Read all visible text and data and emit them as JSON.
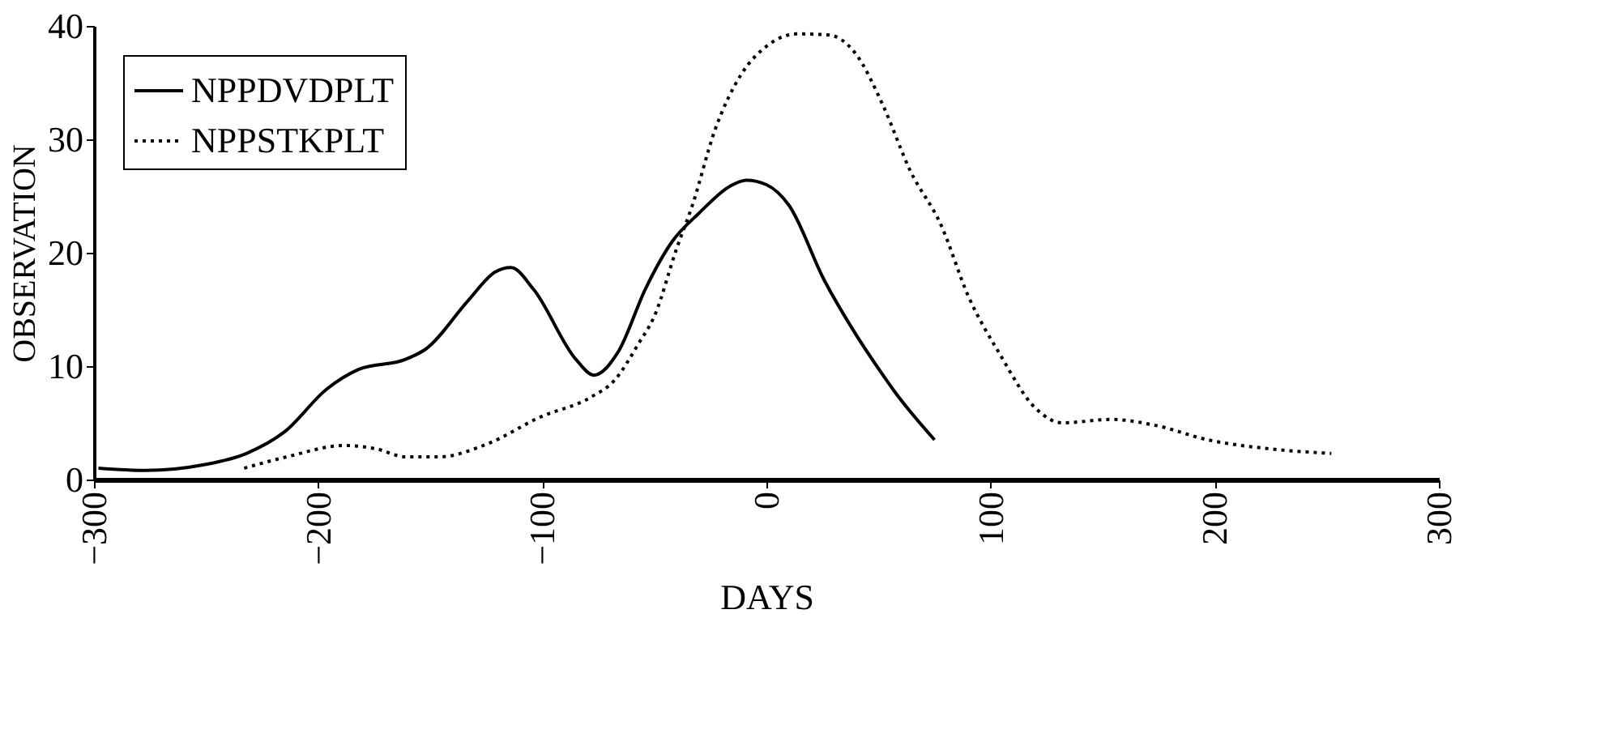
{
  "chart_data": {
    "type": "line",
    "xlabel": "DAYS",
    "ylabel": "OBSERVATION",
    "xlim": [
      -300,
      300
    ],
    "xticks": [
      -300,
      -200,
      -100,
      0,
      100,
      200,
      300
    ],
    "ylim": [
      0,
      40
    ],
    "yticks": [
      0,
      10,
      20,
      30,
      40
    ],
    "legend": "top left",
    "marker": "none",
    "series": [
      {
        "name": "NPPDVDPLT",
        "color": "#000000",
        "line_style": "solid",
        "x": [
          -298,
          -277,
          -251,
          -232,
          -215,
          -196,
          -182,
          -161,
          -152,
          -133,
          -121,
          -114,
          -104,
          -85,
          -77,
          -66,
          -54,
          -42,
          -30,
          -16,
          -9,
          0,
          10,
          26,
          38,
          52,
          57,
          75
        ],
        "values": [
          1.0,
          0.8,
          1.3,
          2.3,
          4.2,
          8.0,
          9.7,
          10.6,
          11.5,
          15.8,
          18.3,
          18.7,
          16.8,
          10.6,
          9.2,
          11.3,
          16.8,
          21.0,
          23.5,
          25.9,
          26.4,
          26.0,
          24.2,
          17.5,
          13.4,
          9.2,
          7.8,
          3.5
        ]
      },
      {
        "name": "NPPSTKPLT",
        "color": "#000000",
        "line_style": "dotted",
        "x": [
          -233,
          -214,
          -188,
          -174,
          -161,
          -146,
          -125,
          -101,
          -78,
          -68,
          -57,
          -50,
          -40,
          -33,
          -23,
          -11,
          0,
          14,
          28,
          40,
          52,
          64,
          78,
          90,
          104,
          120,
          132,
          154,
          173,
          197,
          225,
          252
        ],
        "values": [
          1.0,
          2.0,
          3.0,
          2.7,
          2.0,
          2.0,
          3.1,
          5.5,
          7.3,
          8.7,
          12.0,
          14.4,
          20.4,
          24.2,
          30.8,
          35.8,
          38.2,
          39.3,
          39.2,
          37.5,
          33.0,
          27.3,
          22.4,
          16.2,
          11.1,
          6.3,
          5.0,
          5.3,
          4.8,
          3.5,
          2.7,
          2.3
        ]
      }
    ]
  }
}
